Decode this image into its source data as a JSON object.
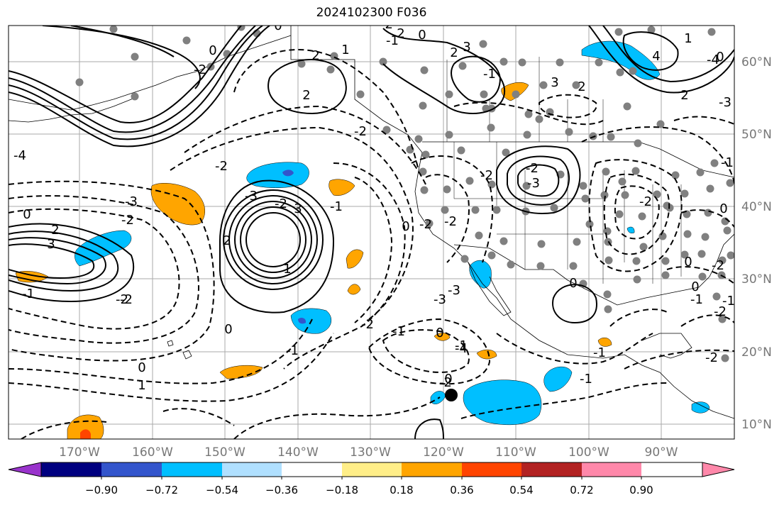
{
  "title": "2024102300 F036",
  "lon_labels": [
    "170°W",
    "160°W",
    "150°W",
    "140°W",
    "130°W",
    "120°W",
    "110°W",
    "100°W",
    "90°W"
  ],
  "lat_labels": [
    "60°N",
    "50°N",
    "40°N",
    "30°N",
    "20°N",
    "10°N"
  ],
  "colorbar": {
    "ticks": [
      "−0.90",
      "−0.72",
      "−0.54",
      "−0.36",
      "−0.18",
      "0.18",
      "0.36",
      "0.54",
      "0.72",
      "0.90"
    ],
    "colors": [
      "#9933cc",
      "#000080",
      "#3355cc",
      "#00bfff",
      "#b0e0ff",
      "#ffffff",
      "#ffee88",
      "#ffa500",
      "#ff4400",
      "#b22222",
      "#ff88aa"
    ]
  },
  "contour_labels": [
    "0",
    "-1",
    "2",
    "3",
    "-3",
    "-2",
    "0",
    "1",
    "2",
    "2",
    "0",
    "1",
    "-4",
    "0",
    "2",
    "3",
    "4",
    "2",
    "-2",
    "-2",
    "-3",
    "-2",
    "3",
    "1",
    "2",
    "-2",
    "-3",
    "-3",
    "-4",
    "-2",
    "-2",
    "0",
    "-1",
    "-2",
    "-3",
    "-2",
    "-2",
    "2",
    "3",
    "0",
    "-1",
    "0",
    "1",
    "2",
    "-1",
    "0",
    "-1",
    "-2",
    "-3",
    "-4",
    "-1",
    "-2",
    "0",
    "0",
    "-1",
    "-2",
    "-1",
    "-2",
    "-2",
    "0",
    "-1",
    "-1",
    "0",
    "0",
    "-1",
    "-2",
    "-1",
    "-2",
    "-2",
    "0"
  ],
  "colors": {
    "blue": "#00bfff",
    "darkblue": "#3355cc",
    "orange": "#ffa500",
    "red": "#ff4400",
    "grid": "#aaaaaa",
    "station": "#808080"
  }
}
